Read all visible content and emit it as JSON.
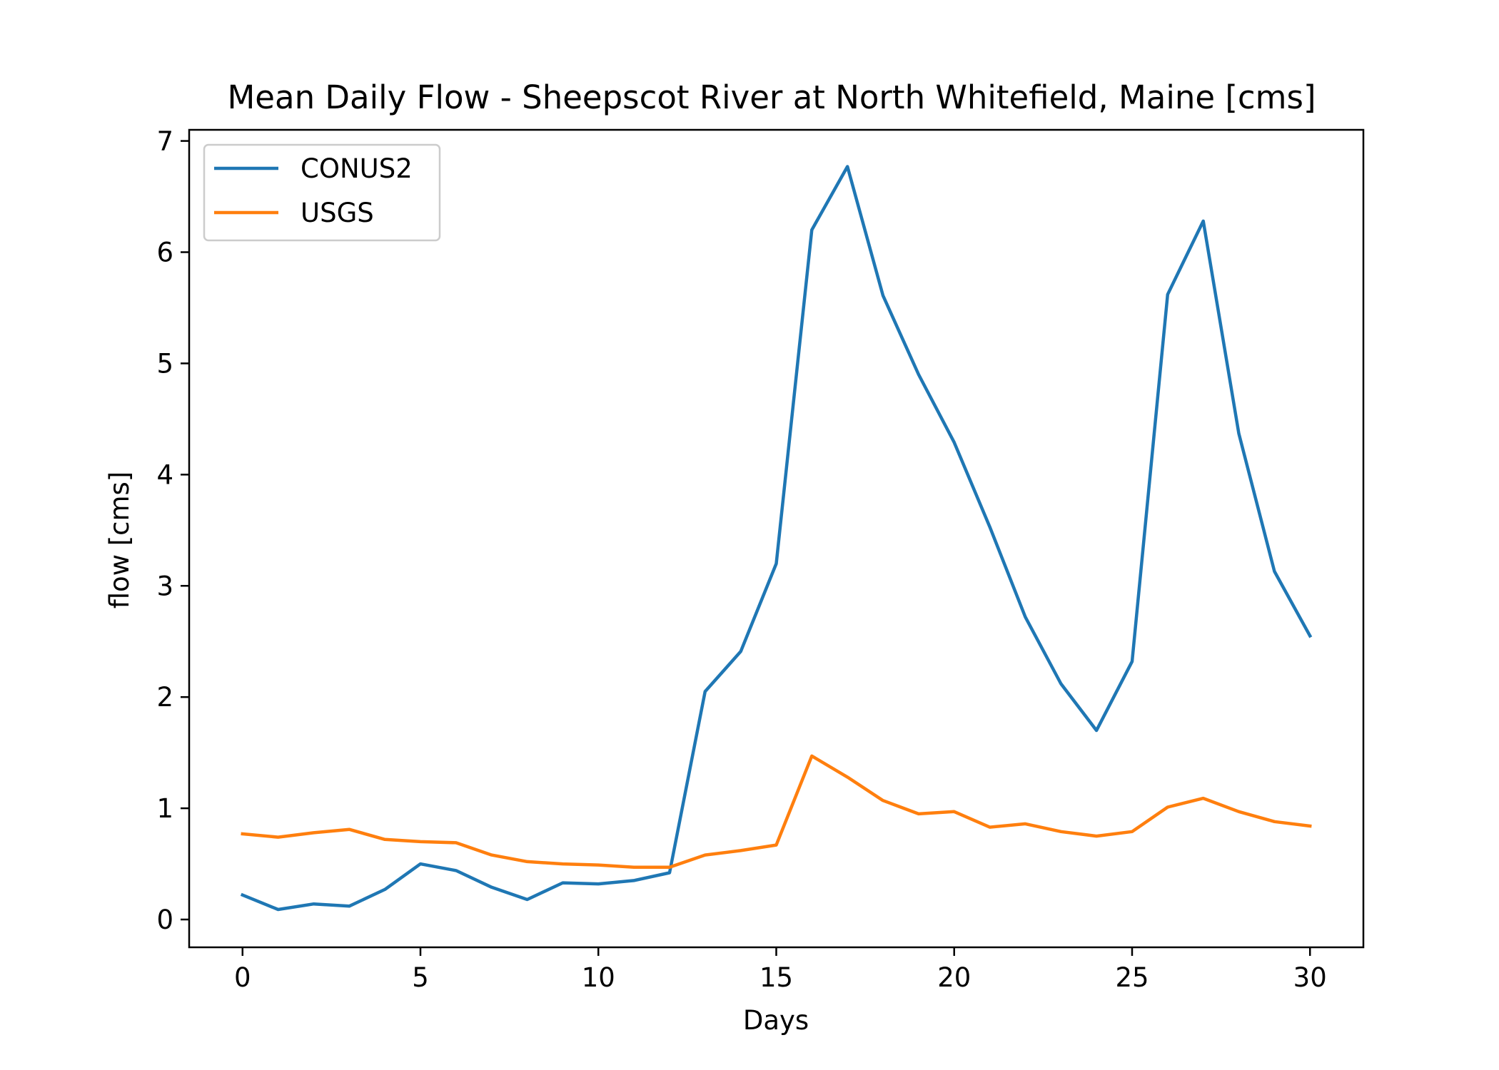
{
  "chart_data": {
    "type": "line",
    "title": "Mean Daily Flow - Sheepscot River at North Whitefield, Maine [cms]",
    "xlabel": "Days",
    "ylabel": "flow [cms]",
    "xlim": [
      -1.5,
      31.5
    ],
    "ylim": [
      -0.25,
      7.1
    ],
    "xticks": [
      0,
      5,
      10,
      15,
      20,
      25,
      30
    ],
    "yticks": [
      0,
      1,
      2,
      3,
      4,
      5,
      6,
      7
    ],
    "grid": false,
    "legend_position": "upper-left",
    "x": [
      0,
      1,
      2,
      3,
      4,
      5,
      6,
      7,
      8,
      9,
      10,
      11,
      12,
      13,
      14,
      15,
      16,
      17,
      18,
      19,
      20,
      21,
      22,
      23,
      24,
      25,
      26,
      27,
      28,
      29,
      30
    ],
    "series": [
      {
        "name": "CONUS2",
        "color": "#1f77b4",
        "values": [
          0.22,
          0.09,
          0.14,
          0.12,
          0.27,
          0.5,
          0.44,
          0.29,
          0.18,
          0.33,
          0.32,
          0.35,
          0.42,
          2.05,
          2.41,
          3.2,
          6.2,
          6.77,
          5.61,
          4.9,
          4.29,
          3.53,
          2.72,
          2.12,
          1.7,
          2.32,
          5.62,
          6.28,
          4.37,
          3.13,
          2.55
        ]
      },
      {
        "name": "USGS",
        "color": "#ff7f0e",
        "values": [
          0.77,
          0.74,
          0.78,
          0.81,
          0.72,
          0.7,
          0.69,
          0.58,
          0.52,
          0.5,
          0.49,
          0.47,
          0.47,
          0.58,
          0.62,
          0.67,
          1.47,
          1.28,
          1.07,
          0.95,
          0.97,
          0.83,
          0.86,
          0.79,
          0.75,
          0.79,
          1.01,
          1.09,
          0.97,
          0.88,
          0.84
        ]
      }
    ]
  }
}
